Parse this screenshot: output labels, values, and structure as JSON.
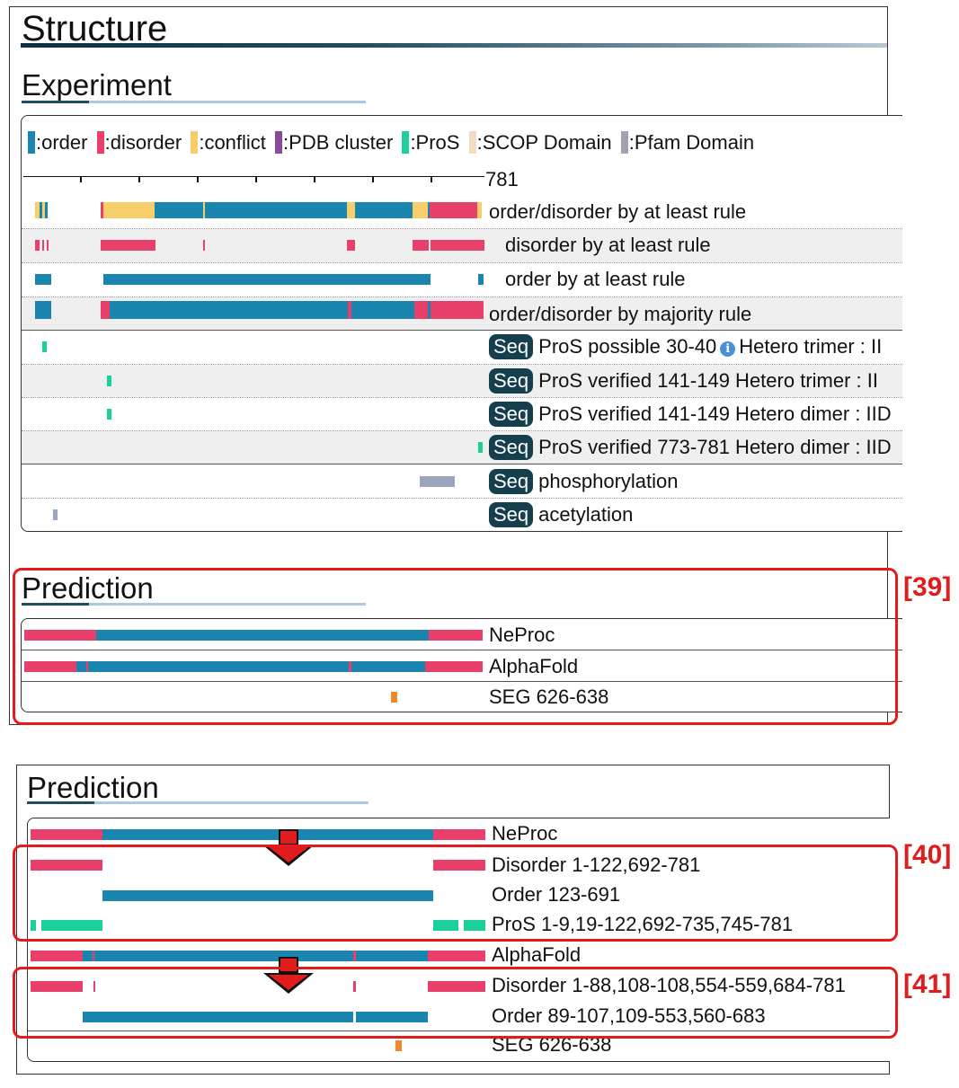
{
  "colors": {
    "order": "#1a86b0",
    "disorder": "#e8406b",
    "conflict": "#f7cf6a",
    "pdb_cluster": "#8a4a9a",
    "pros": "#1bd09a",
    "scop": "#f2dcc2",
    "pfam": "#a4a2ae",
    "mod": "#9ba5bd",
    "seg": "#f0872c",
    "highlight": "#e21c1c"
  },
  "top": {
    "title": "Structure",
    "experiment": {
      "heading": "Experiment",
      "legend": [
        {
          "color": "order",
          "label": ":order"
        },
        {
          "color": "disorder",
          "label": ":disorder"
        },
        {
          "color": "conflict",
          "label": ":conflict"
        },
        {
          "color": "pdb_cluster",
          "label": ":PDB cluster"
        },
        {
          "color": "pros",
          "label": ":ProS"
        },
        {
          "color": "scop",
          "label": ":SCOP Domain"
        },
        {
          "color": "pfam",
          "label": ":Pfam Domain"
        }
      ],
      "axis_max": "781",
      "rows": [
        {
          "label": "order/disorder by at least rule",
          "shaded": false
        },
        {
          "label": "disorder by at least rule",
          "shaded": true
        },
        {
          "label": "order by at least rule",
          "shaded": false
        },
        {
          "label": "order/disorder by majority rule",
          "shaded": true
        },
        {
          "seq": "Seq",
          "label": "ProS possible 30-40",
          "tail": "Hetero trimer : II",
          "info": true,
          "shaded": false
        },
        {
          "seq": "Seq",
          "label": "ProS verified 141-149 Hetero trimer : II",
          "shaded": true
        },
        {
          "seq": "Seq",
          "label": "ProS verified 141-149 Hetero dimer : IID",
          "shaded": false
        },
        {
          "seq": "Seq",
          "label": "ProS verified 773-781 Hetero dimer : IID",
          "shaded": true
        },
        {
          "seq": "Seq",
          "label": "phosphorylation",
          "shaded": false
        },
        {
          "seq": "Seq",
          "label": "acetylation",
          "shaded": false
        }
      ]
    },
    "prediction": {
      "heading": "Prediction",
      "rows": [
        {
          "label": "NeProc"
        },
        {
          "label": "AlphaFold"
        },
        {
          "label": "SEG 626-638"
        }
      ],
      "ref": "[39]"
    }
  },
  "bottom": {
    "heading": "Prediction",
    "rows": [
      {
        "label": "NeProc"
      },
      {
        "label": "Disorder 1-122,692-781"
      },
      {
        "label": "Order 123-691"
      },
      {
        "label": "ProS 1-9,19-122,692-735,745-781"
      },
      {
        "label": "AlphaFold"
      },
      {
        "label": "Disorder 1-88,108-108,554-559,684-781"
      },
      {
        "label": "Order 89-107,109-553,560-683"
      },
      {
        "label": "SEG 626-638"
      }
    ],
    "ref1": "[40]",
    "ref2": "[41]"
  }
}
